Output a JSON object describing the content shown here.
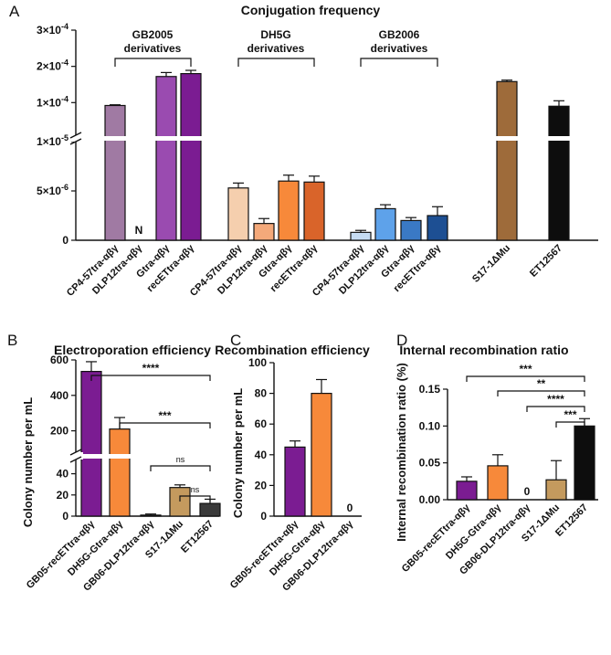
{
  "chart_data": [
    {
      "panel": "A",
      "type": "bar",
      "title": "Conjugation frequency",
      "xlabel": "",
      "ylabel": "",
      "y_scale": "broken: linear 0–1×10^-5 below break, linear 1×10^-5–3×10^-4 above break",
      "y_ticks": [
        "0",
        "5×10^-6",
        "1×10^-5",
        "1×10^-4",
        "2×10^-4",
        "3×10^-4"
      ],
      "groups": [
        "GB2005\nderivatives",
        "DH5G\nderivatives",
        "GB2006\nderivatives"
      ],
      "categories": [
        "CP4-57tra-αβγ",
        "DLP12tra-αβγ",
        "Gtra-αβγ",
        "recETtra-αβγ",
        "CP4-57tra-αβγ",
        "DLP12tra-αβγ",
        "Gtra-αβγ",
        "recETtra-αβγ",
        "CP4-57tra-αβγ",
        "DLP12tra-αβγ",
        "Gtra-αβγ",
        "recETtra-αβγ",
        "S17-1ΔMu",
        "ET12567"
      ],
      "values": [
        9.2e-05,
        null,
        0.000172,
        0.00018,
        5.3e-06,
        1.7e-06,
        6e-06,
        5.9e-06,
        8e-07,
        3.2e-06,
        2e-06,
        2.5e-06,
        0.000158,
        9e-05
      ],
      "errors": [
        2e-06,
        0,
        1.1e-05,
        9e-06,
        5e-07,
        5e-07,
        6e-07,
        6e-07,
        2e-07,
        4e-07,
        3e-07,
        9e-07,
        4e-06,
        1.5e-05
      ],
      "value_labels": [
        "",
        "N",
        "",
        "",
        "",
        "",
        "",
        "",
        "",
        "",
        "",
        "",
        "",
        ""
      ],
      "colors": [
        "#a07aa3",
        "#7b2a8a",
        "#9a4bb0",
        "#7b1c92",
        "#f5cfae",
        "#f4a97a",
        "#f7893a",
        "#d9642a",
        "#c6dcf3",
        "#5ea2ea",
        "#3a79c5",
        "#1d4f93",
        "#9e6b3a",
        "#0d0d0d"
      ]
    },
    {
      "panel": "B",
      "type": "bar",
      "title": "Electroporation efficiency",
      "xlabel": "",
      "ylabel": "Colony number per mL",
      "y_scale": "broken: linear 0–50 below break, linear 100–600 above break",
      "y_ticks": [
        "0",
        "20",
        "40",
        "200",
        "400",
        "600"
      ],
      "categories": [
        "GB05-recETtra-αβγ",
        "DH5G-Gtra-αβγ",
        "GB06-DLP12tra-αβγ",
        "S17-1ΔMu",
        "ET12567"
      ],
      "values": [
        535,
        210,
        1,
        27,
        12
      ],
      "errors": [
        55,
        65,
        1,
        2.5,
        4
      ],
      "colors": [
        "#7b1c92",
        "#f7893a",
        "#3a79c5",
        "#c49a5e",
        "#3a3a3a"
      ],
      "significance": [
        "****",
        "***",
        "ns",
        "ns"
      ]
    },
    {
      "panel": "C",
      "type": "bar",
      "title": "Recombination efficiency",
      "xlabel": "",
      "ylabel": "Colony number per mL",
      "ylim": [
        0,
        100
      ],
      "y_ticks": [
        "0",
        "20",
        "40",
        "60",
        "80",
        "100"
      ],
      "categories": [
        "GB05-recETtra-αβγ",
        "DH5G-Gtra-αβγ",
        "GB06-DLP12tra-αβγ"
      ],
      "values": [
        45,
        80,
        0
      ],
      "errors": [
        4,
        9,
        0
      ],
      "value_labels": [
        "",
        "",
        "0"
      ],
      "colors": [
        "#7b1c92",
        "#f7893a",
        "#3a79c5"
      ]
    },
    {
      "panel": "D",
      "type": "bar",
      "title": "Internal recombination ratio",
      "xlabel": "",
      "ylabel": "Internal recombination ratio (%)",
      "ylim": [
        0,
        0.15
      ],
      "y_ticks": [
        "0.00",
        "0.05",
        "0.10",
        "0.15"
      ],
      "categories": [
        "GB05-recETtra-αβγ",
        "DH5G-Gtra-αβγ",
        "GB06-DLP12tra-αβγ",
        "S17-1ΔMu",
        "ET12567"
      ],
      "values": [
        0.025,
        0.046,
        0,
        0.027,
        0.1
      ],
      "errors": [
        0.006,
        0.015,
        0,
        0.026,
        0.01
      ],
      "value_labels": [
        "",
        "",
        "0",
        "",
        ""
      ],
      "colors": [
        "#7b1c92",
        "#f7893a",
        "#3a79c5",
        "#c49a5e",
        "#0d0d0d"
      ],
      "significance": [
        "***",
        "**",
        "****",
        "***"
      ]
    }
  ]
}
